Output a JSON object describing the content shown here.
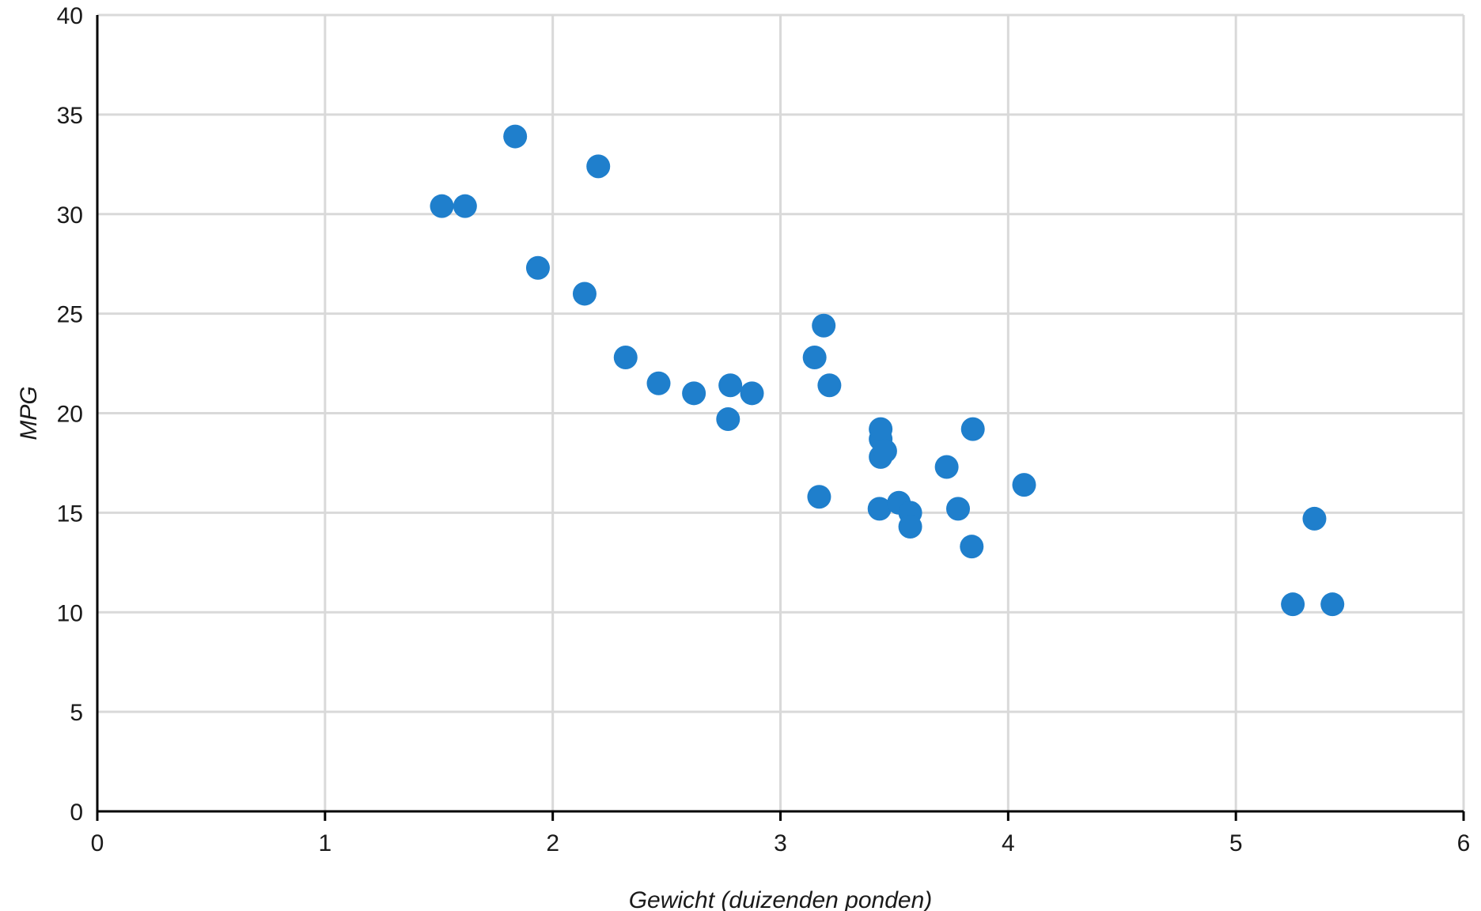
{
  "chart_data": {
    "type": "scatter",
    "title": "",
    "xlabel": "Gewicht (duizenden ponden)",
    "ylabel": "MPG",
    "xlim": [
      0,
      6
    ],
    "ylim": [
      0,
      40
    ],
    "x_ticks": [
      0,
      1,
      2,
      3,
      4,
      5,
      6
    ],
    "y_ticks": [
      0,
      5,
      10,
      15,
      20,
      25,
      30,
      35,
      40
    ],
    "grid": true,
    "legend": "none",
    "color": "#1f7fcc",
    "points": [
      {
        "x": 1.513,
        "y": 30.4
      },
      {
        "x": 1.615,
        "y": 30.4
      },
      {
        "x": 1.835,
        "y": 33.9
      },
      {
        "x": 1.935,
        "y": 27.3
      },
      {
        "x": 2.14,
        "y": 26.0
      },
      {
        "x": 2.2,
        "y": 32.4
      },
      {
        "x": 2.32,
        "y": 22.8
      },
      {
        "x": 2.465,
        "y": 21.5
      },
      {
        "x": 2.62,
        "y": 21.0
      },
      {
        "x": 2.77,
        "y": 19.7
      },
      {
        "x": 2.78,
        "y": 21.4
      },
      {
        "x": 2.875,
        "y": 21.0
      },
      {
        "x": 3.15,
        "y": 22.8
      },
      {
        "x": 3.17,
        "y": 15.8
      },
      {
        "x": 3.19,
        "y": 24.4
      },
      {
        "x": 3.215,
        "y": 21.4
      },
      {
        "x": 3.435,
        "y": 15.2
      },
      {
        "x": 3.44,
        "y": 18.7
      },
      {
        "x": 3.44,
        "y": 19.2
      },
      {
        "x": 3.44,
        "y": 17.8
      },
      {
        "x": 3.46,
        "y": 18.1
      },
      {
        "x": 3.52,
        "y": 15.5
      },
      {
        "x": 3.57,
        "y": 15.0
      },
      {
        "x": 3.57,
        "y": 14.3
      },
      {
        "x": 3.73,
        "y": 17.3
      },
      {
        "x": 3.78,
        "y": 15.2
      },
      {
        "x": 3.84,
        "y": 13.3
      },
      {
        "x": 3.845,
        "y": 19.2
      },
      {
        "x": 4.07,
        "y": 16.4
      },
      {
        "x": 5.25,
        "y": 10.4
      },
      {
        "x": 5.345,
        "y": 14.7
      },
      {
        "x": 5.424,
        "y": 10.4
      }
    ]
  }
}
